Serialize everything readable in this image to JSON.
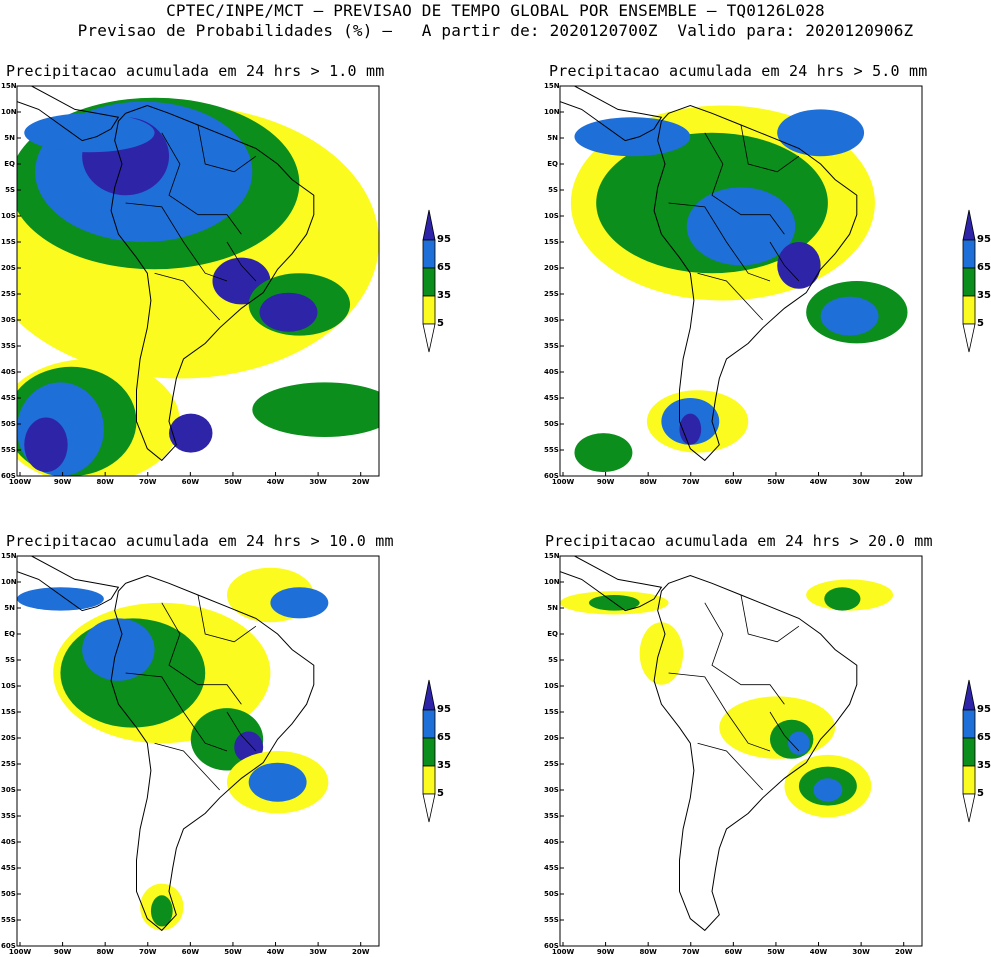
{
  "header": {
    "line1": "CPTEC/INPE/MCT – PREVISAO DE TEMPO GLOBAL POR ENSEMBLE – TQ0126L028",
    "line2": "Previsao de Probabilidades (%) –   A partir de: 2020120700Z  Valido para: 2020120906Z"
  },
  "axes": {
    "lat_labels": [
      "15N",
      "10N",
      "5N",
      "EQ",
      "5S",
      "10S",
      "15S",
      "20S",
      "25S",
      "30S",
      "35S",
      "40S",
      "45S",
      "50S",
      "55S",
      "60S"
    ],
    "lon_labels": [
      "100W",
      "90W",
      "80W",
      "70W",
      "60W",
      "50W",
      "40W",
      "30W",
      "20W"
    ]
  },
  "legend": {
    "levels": [
      "95",
      "65",
      "35",
      "5"
    ],
    "colors": {
      "c95": "#2e24a8",
      "c65": "#1f6fd8",
      "c35": "#0b8e1c",
      "c5": "#fbfb20"
    }
  },
  "panels": [
    {
      "title": "Precipitacao acumulada em 24 hrs > 1.0 mm"
    },
    {
      "title": "Precipitacao acumulada em 24 hrs > 5.0 mm"
    },
    {
      "title": "Precipitacao acumulada em 24 hrs > 10.0 mm"
    },
    {
      "title": "Precipitacao acumulada em 24 hrs > 20.0 mm"
    }
  ]
}
